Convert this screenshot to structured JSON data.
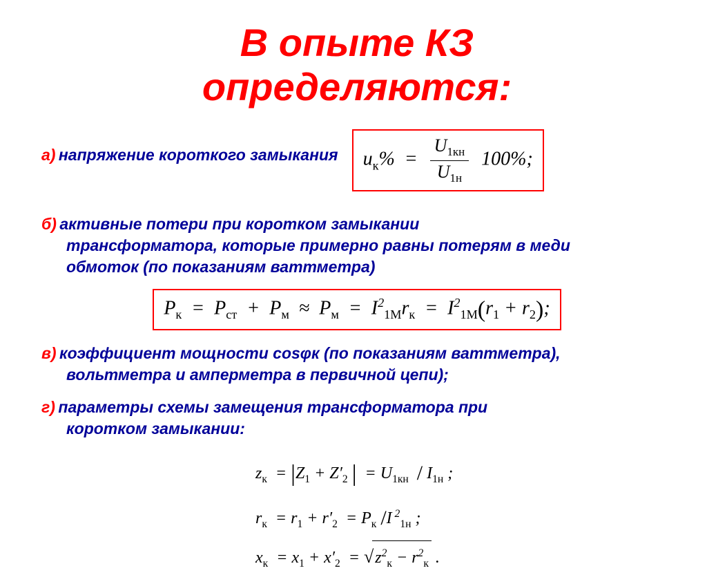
{
  "title_line1": "В опыте КЗ",
  "title_line2": "определяются:",
  "item_a": {
    "letter": "а)",
    "text": "напряжение короткого замыкания"
  },
  "item_b": {
    "letter": "б)",
    "text1": "активные потери при коротком замыкании",
    "text2": "трансформатора, которые примерно равны потерям в меди",
    "text3": "обмоток (по показаниям ваттметра)"
  },
  "item_v": {
    "letter": "в)",
    "text1": "коэффициент мощности cosφк (по показаниям ваттметра),",
    "text2": "вольтметра и амперметра в первичной цепи);"
  },
  "item_g": {
    "letter": "г)",
    "text1": "параметры схемы замещения трансформатора при",
    "text2": "коротком замыкании:"
  },
  "formulas": {
    "a_left": "u",
    "a_sub": "к",
    "a_pct": "%",
    "a_eq": "=",
    "a_num": "U",
    "a_num_sub": "1кн",
    "a_den": "U",
    "a_den_sub": "1н",
    "a_right": "100%;",
    "b": "P",
    "b_sub_k": "к",
    "b_sub_st": "ст",
    "b_sub_m": "м",
    "b_I": "I",
    "b_1M": "1М",
    "b_r": "r",
    "b_r1": "1",
    "b_r2": "2",
    "g_z": "z",
    "g_Z": "Z",
    "g_U": "U",
    "g_I": "I",
    "g_P": "P",
    "g_x": "x",
    "g_prime": "′",
    "g_sub_k": "к",
    "g_sub_1": "1",
    "g_sub_2": "2",
    "g_sub_1kn": "1кн",
    "g_sub_1n": "1н"
  },
  "colors": {
    "title": "#ff0000",
    "letter": "#ff0000",
    "body": "#000099",
    "box_border": "#ff0000"
  },
  "fontsize": {
    "title": 56,
    "body": 23,
    "formula": 28
  }
}
